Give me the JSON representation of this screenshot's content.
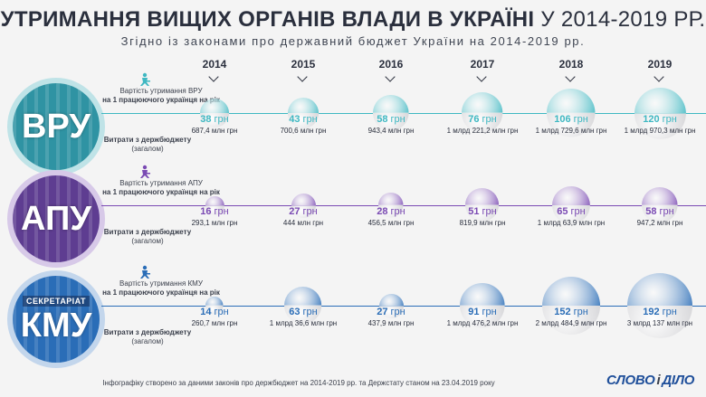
{
  "title": {
    "main": "УТРИМАННЯ ВИЩИХ ОРГАНІВ ВЛАДИ В УКРАЇНІ",
    "range": "У 2014-2019 РР."
  },
  "subtitle": "Згідно із законами про державний бюджет України на 2014-2019 рр.",
  "years": [
    "2014",
    "2015",
    "2016",
    "2017",
    "2018",
    "2019"
  ],
  "groups": [
    {
      "abbr": "ВРУ",
      "overlabel": "",
      "color": "#3fb8c2",
      "ring_color": "#bfe3e7",
      "circle_color": "#2f93a3",
      "label_top": "Вартість утримання ВРУ",
      "label_top_bold": "на 1 працюючого українця на рік",
      "label_bottom_bold": "Витрати з держбюджету",
      "label_bottom": "(загалом)"
    },
    {
      "abbr": "АПУ",
      "overlabel": "",
      "color": "#7a4ab3",
      "ring_color": "#d7c9e8",
      "circle_color": "#5e3d91",
      "label_top": "Вартість утримання АПУ",
      "label_top_bold": "на 1 працюючого українця на рік",
      "label_bottom_bold": "Витрати з держбюджету",
      "label_bottom": "(загалом)"
    },
    {
      "abbr": "КМУ",
      "overlabel": "СЕКРЕТАРІАТ",
      "color": "#2a6db7",
      "ring_color": "#c3d6ec",
      "circle_color": "#2a6db7",
      "label_top": "Вартість утримання КМУ",
      "label_top_bold": "на 1 працюючого українця на рік",
      "label_bottom_bold": "Витрати з держбюджету",
      "label_bottom": "(загалом)"
    }
  ],
  "chart_data": {
    "type": "bubble",
    "categories": [
      "2014",
      "2015",
      "2016",
      "2017",
      "2018",
      "2019"
    ],
    "series": [
      {
        "name": "ВРУ",
        "per_worker_uah": [
          38,
          43,
          58,
          76,
          106,
          120
        ],
        "per_worker_labels": [
          "38",
          "43",
          "58",
          "76",
          "106",
          "120"
        ],
        "total_labels": [
          "687,4 млн грн",
          "700,6 млн грн",
          "943,4 млн грн",
          "1 млрд 221,2 млн грн",
          "1 млрд 729,6 млн грн",
          "1 млрд 970,3 млн грн"
        ],
        "total_mln_uah": [
          687.4,
          700.6,
          943.4,
          1221.2,
          1729.6,
          1970.3
        ]
      },
      {
        "name": "АПУ",
        "per_worker_uah": [
          16,
          27,
          28,
          51,
          65,
          58
        ],
        "per_worker_labels": [
          "16",
          "27",
          "28",
          "51",
          "65",
          "58"
        ],
        "total_labels": [
          "293,1 млн грн",
          "444 млн грн",
          "456,5 млн грн",
          "819,9 млн грн",
          "1 млрд 63,9 млн грн",
          "947,2 млн грн"
        ],
        "total_mln_uah": [
          293.1,
          444,
          456.5,
          819.9,
          1063.9,
          947.2
        ]
      },
      {
        "name": "КМУ",
        "per_worker_uah": [
          14,
          63,
          27,
          91,
          152,
          192
        ],
        "per_worker_labels": [
          "14",
          "63",
          "27",
          "91",
          "152",
          "192"
        ],
        "total_labels": [
          "260,7 млн грн",
          "1 млрд 36,6 млн грн",
          "437,9 млн грн",
          "1 млрд 476,2 млн грн",
          "2 млрд 484,9 млн грн",
          "3 млрд 137 млн грн"
        ],
        "total_mln_uah": [
          260.7,
          1036.6,
          437.9,
          1476.2,
          2484.9,
          3137
        ]
      }
    ],
    "unit": "грн"
  },
  "footer": "Інфографіку створено за даними законів про держбюджет на 2014-2019 рр. та Держстату станом на 23.04.2019 року",
  "logo": {
    "left": "СЛОВО",
    "sep": "і",
    "right": "ДІЛО"
  }
}
